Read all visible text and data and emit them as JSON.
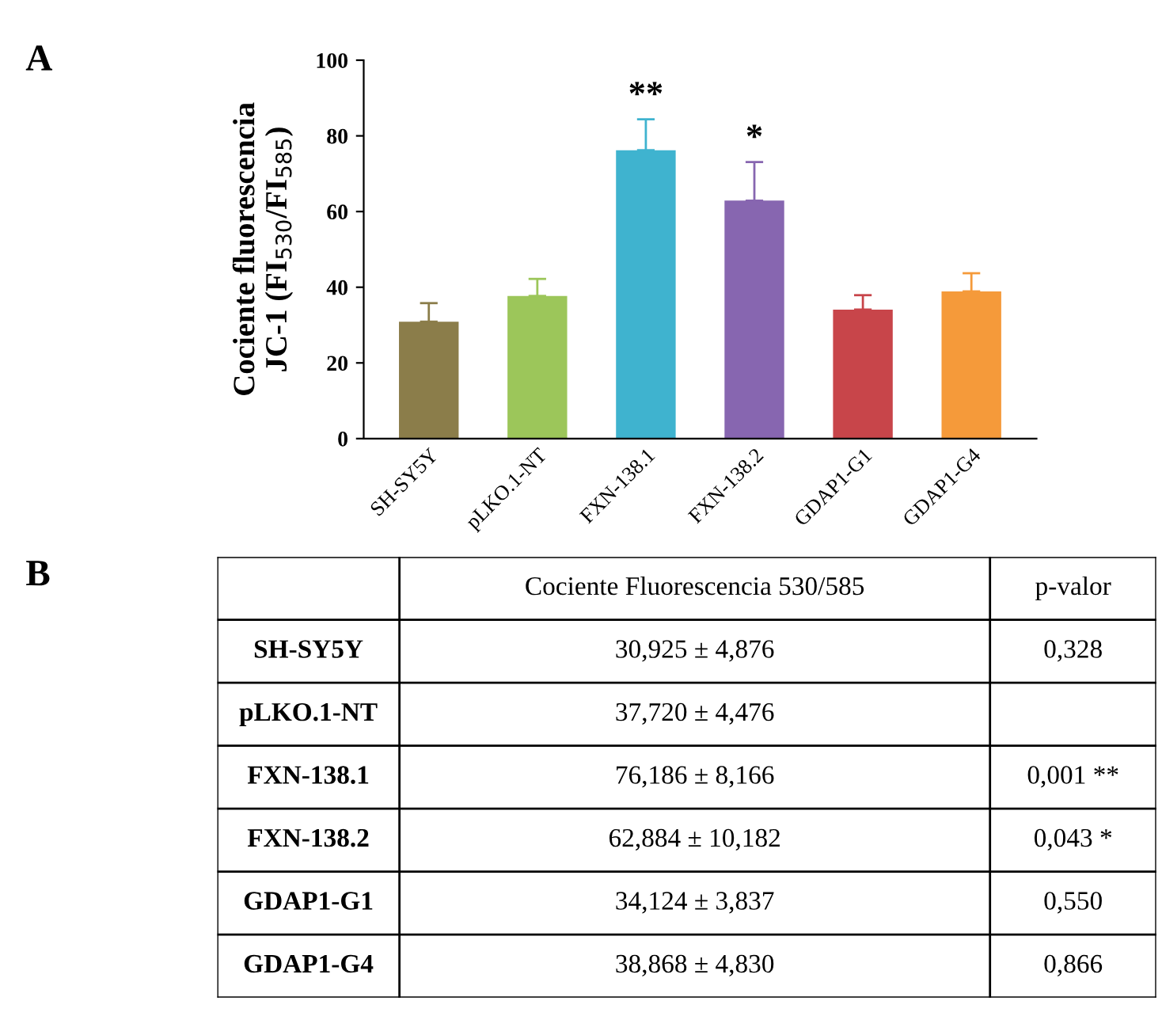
{
  "chart_data": {
    "type": "bar",
    "ylabel": "Cociente fluorescencia\nJC-1 (FI$_{530}$/FI$_{585}$)",
    "categories": [
      "SH-SY5Y",
      "pLKO.1-NT",
      "FXN-138.1",
      "FXN-138.2",
      "GDAP1-G1",
      "GDAP1-G4"
    ],
    "values": [
      30.9,
      37.7,
      76.2,
      62.9,
      34.1,
      38.9
    ],
    "errors": [
      4.9,
      4.5,
      8.2,
      10.2,
      3.8,
      4.8
    ],
    "colors": [
      "#8b7d4a",
      "#9cc65a",
      "#3fb3cf",
      "#8766b0",
      "#c8454a",
      "#f59a3a"
    ],
    "ylim": [
      0,
      100
    ],
    "yticks": [
      0,
      20,
      40,
      60,
      80,
      100
    ],
    "grid": false,
    "legend": false,
    "annotations": [
      "A",
      "B",
      "Cociente Fluorescencia 530/585",
      "p-valor",
      "30,925 ± 4,876",
      "37,720 ± 4,476",
      "76,186 ± 8,166",
      "62,884 ± 10,182",
      "34,124 ± 3,837",
      "38,868 ± 4,830",
      "0,328",
      "0,001 **",
      "0,043 *",
      "0,550",
      "0,866",
      {
        "text": "**",
        "x": "FXN-138.1",
        "y": 84.4
      },
      {
        "text": "*",
        "x": "FXN-138.2",
        "y": 73.1
      }
    ]
  }
}
